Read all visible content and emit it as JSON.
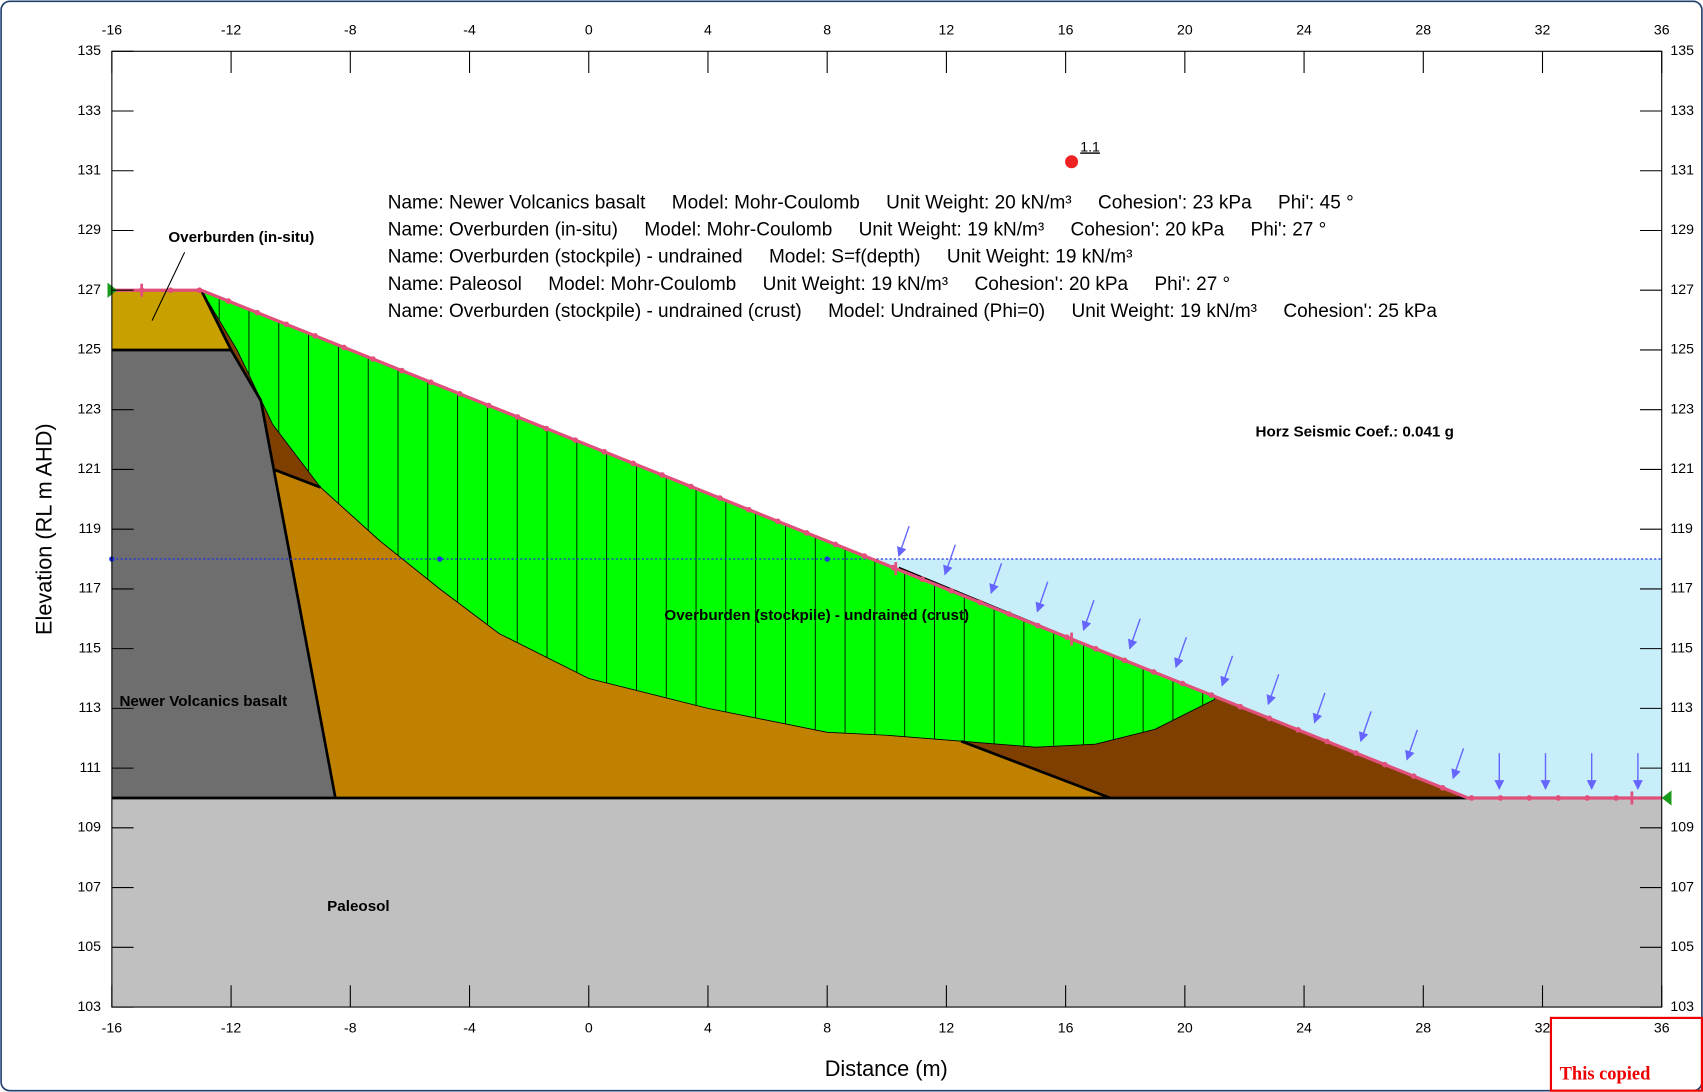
{
  "chart_data": {
    "type": "slope-section",
    "x_label": "Distance (m)",
    "y_label": "Elevation (RL m AHD)",
    "xlim": [
      -16,
      36
    ],
    "ylim": [
      103,
      135
    ],
    "xticks": [
      -16,
      -12,
      -8,
      -4,
      0,
      4,
      8,
      12,
      16,
      20,
      24,
      28,
      32,
      36
    ],
    "yticks": [
      103,
      105,
      107,
      109,
      111,
      113,
      115,
      117,
      119,
      121,
      123,
      125,
      127,
      129,
      131,
      133,
      135
    ],
    "regions": [
      {
        "color": "#c0c0c0",
        "points": [
          [
            -16,
            110
          ],
          [
            36,
            110
          ],
          [
            36,
            103
          ],
          [
            -16,
            103
          ]
        ]
      },
      {
        "color": "#6e6e6e",
        "points": [
          [
            -16,
            125
          ],
          [
            -12,
            125
          ],
          [
            -11,
            123.3
          ],
          [
            -8.5,
            110
          ],
          [
            -16,
            110
          ]
        ]
      },
      {
        "color": "#c8a000",
        "points": [
          [
            -16,
            127
          ],
          [
            -13,
            127
          ],
          [
            -12,
            125
          ],
          [
            -16,
            125
          ]
        ]
      },
      {
        "color": "#7f3f00",
        "points": [
          [
            -13,
            127
          ],
          [
            -12,
            125
          ],
          [
            -11,
            123.3
          ],
          [
            -8.5,
            110
          ],
          [
            29.5,
            110
          ]
        ]
      },
      {
        "color": "#c08000",
        "points": [
          [
            -10.57,
            121
          ],
          [
            -9,
            120.4
          ],
          [
            -7,
            118.6
          ],
          [
            -5,
            117.2
          ],
          [
            -3,
            115.9
          ],
          [
            0,
            114.8
          ],
          [
            4,
            113.7
          ],
          [
            8,
            112.6
          ],
          [
            12.5,
            111.9
          ],
          [
            17.5,
            110
          ],
          [
            -8.5,
            110
          ]
        ]
      }
    ],
    "surface": [
      [
        -16,
        127
      ],
      [
        -13,
        127
      ],
      [
        29.5,
        110
      ],
      [
        36,
        110
      ]
    ],
    "surface_color": "#e0507a",
    "water_level": 118,
    "water_color": "#c8eefa",
    "slip_surface": [
      [
        -13,
        127
      ],
      [
        -11.8,
        125
      ],
      [
        -10.6,
        122.5
      ],
      [
        -9,
        120.4
      ],
      [
        -7,
        118.6
      ],
      [
        -5,
        117
      ],
      [
        -3,
        115.5
      ],
      [
        0,
        114
      ],
      [
        4,
        113
      ],
      [
        8,
        112.2
      ],
      [
        10,
        112.1
      ],
      [
        12.5,
        111.9
      ],
      [
        15,
        111.7
      ],
      [
        17,
        111.8
      ],
      [
        19,
        112.3
      ],
      [
        21,
        113.3
      ]
    ],
    "slip_color": "#00ff00",
    "factor_of_safety": {
      "label": "1.1",
      "x": 16.2,
      "y": 131.3,
      "color": "#ee2222"
    },
    "material_labels": [
      "Overburden (in-situ)",
      "Newer Volcanics basalt",
      "Overburden (stockpile) - undrained (crust)",
      "Paleosol"
    ],
    "properties": [
      "Name: Newer Volcanics basalt     Model: Mohr-Coulomb     Unit Weight: 20 kN/m³     Cohesion': 23 kPa     Phi': 45 °",
      "Name: Overburden (in-situ)     Model: Mohr-Coulomb     Unit Weight: 19 kN/m³     Cohesion': 20 kPa     Phi': 27 °",
      "Name: Overburden (stockpile) - undrained     Model: S=f(depth)     Unit Weight: 19 kN/m³",
      "Name: Paleosol     Model: Mohr-Coulomb     Unit Weight: 19 kN/m³     Cohesion': 20 kPa     Phi': 27 °",
      "Name: Overburden (stockpile) - undrained (crust)     Model: Undrained (Phi=0)     Unit Weight: 19 kN/m³     Cohesion': 25 kPa"
    ],
    "seismic": "Horz Seismic Coef.: 0.041 g",
    "notice": "This copied"
  }
}
